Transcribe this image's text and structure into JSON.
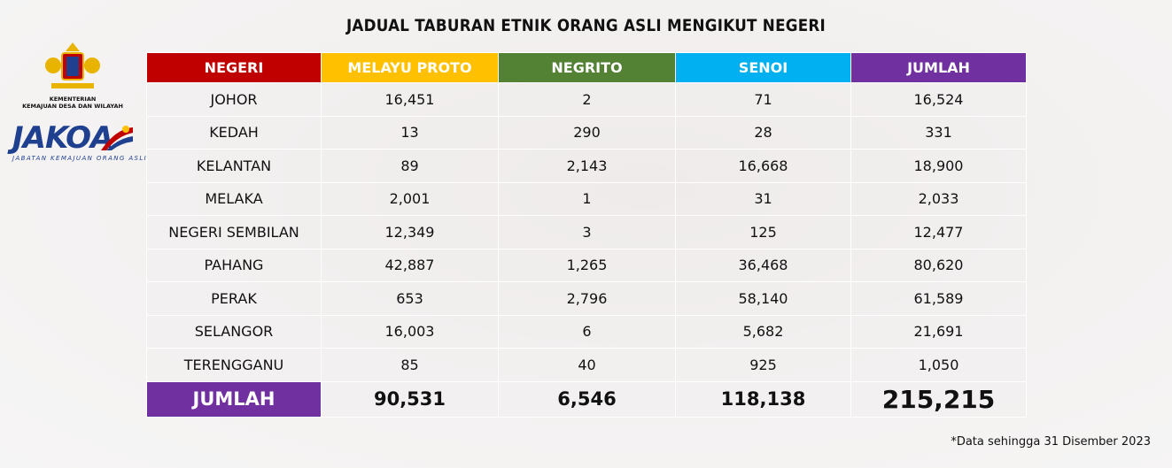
{
  "header": {
    "title": "JADUAL TABURAN ETNIK ORANG ASLI MENGIKUT NEGERI"
  },
  "logos": {
    "ministry_line1": "KEMENTERIAN",
    "ministry_line2": "KEMAJUAN DESA DAN WILAYAH",
    "agency": "JAKOA",
    "agency_full": "JABATAN KEMAJUAN ORANG ASLI"
  },
  "table": {
    "columns": [
      "NEGERI",
      "MELAYU PROTO",
      "NEGRITO",
      "SENOI",
      "JUMLAH"
    ],
    "rows": [
      [
        "JOHOR",
        "16,451",
        "2",
        "71",
        "16,524"
      ],
      [
        "KEDAH",
        "13",
        "290",
        "28",
        "331"
      ],
      [
        "KELANTAN",
        "89",
        "2,143",
        "16,668",
        "18,900"
      ],
      [
        "MELAKA",
        "2,001",
        "1",
        "31",
        "2,033"
      ],
      [
        "NEGERI SEMBILAN",
        "12,349",
        "3",
        "125",
        "12,477"
      ],
      [
        "PAHANG",
        "42,887",
        "1,265",
        "36,468",
        "80,620"
      ],
      [
        "PERAK",
        "653",
        "2,796",
        "58,140",
        "61,589"
      ],
      [
        "SELANGOR",
        "16,003",
        "6",
        "5,682",
        "21,691"
      ],
      [
        "TERENGGANU",
        "85",
        "40",
        "925",
        "1,050"
      ]
    ],
    "total": [
      "JUMLAH",
      "90,531",
      "6,546",
      "118,138",
      "215,215"
    ]
  },
  "footnote": "*Data sehingga 31 Disember 2023"
}
